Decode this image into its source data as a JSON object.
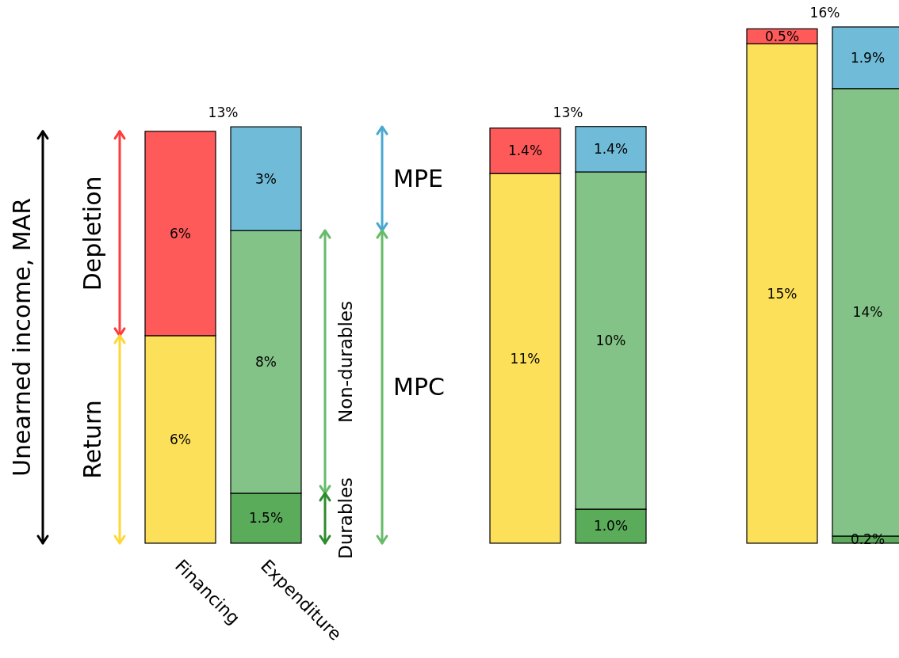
{
  "chart_data": [
    {
      "type": "bar",
      "stacked": true,
      "categories": [
        "Financing",
        "Expenditure"
      ],
      "tick_labels": "x",
      "series": [
        {
          "color": "#fde05a",
          "values": [
            6.4,
            null
          ],
          "value_labels": [
            "6%",
            null
          ]
        },
        {
          "color": "#ff5a5a",
          "values": [
            6.3,
            null
          ],
          "value_labels": [
            "6%",
            null
          ]
        },
        {
          "color": "#5aab5a",
          "values": [
            null,
            1.54
          ],
          "value_labels": [
            null,
            "1.5%"
          ]
        },
        {
          "color": "#84c387",
          "values": [
            null,
            8.1
          ],
          "value_labels": [
            null,
            "8%"
          ]
        },
        {
          "color": "#70bcd8",
          "values": [
            null,
            3.2
          ],
          "value_labels": [
            null,
            "3%"
          ]
        }
      ],
      "annotations": [
        "13%",
        "Unearned income, MAR",
        "Depletion",
        "Return",
        "Non-durables",
        "Durables",
        "MPE",
        "MPC"
      ]
    },
    {
      "type": "bar",
      "stacked": true,
      "categories": [
        null,
        null
      ],
      "tick_labels": "x",
      "series": [
        {
          "color": "#fde05a",
          "values": [
            11.4,
            null
          ],
          "value_labels": [
            "11%",
            null
          ]
        },
        {
          "color": "#ff5a5a",
          "values": [
            1.4,
            null
          ],
          "value_labels": [
            "1.4%",
            null
          ]
        },
        {
          "color": "#5aab5a",
          "values": [
            null,
            1.05
          ],
          "value_labels": [
            null,
            "1.0%"
          ]
        },
        {
          "color": "#84c387",
          "values": [
            null,
            10.4
          ],
          "value_labels": [
            null,
            "10%"
          ]
        },
        {
          "color": "#70bcd8",
          "values": [
            null,
            1.4
          ],
          "value_labels": [
            null,
            "1.4%"
          ]
        }
      ],
      "annotations": [
        "13%"
      ]
    },
    {
      "type": "bar",
      "stacked": true,
      "categories": [
        null,
        null
      ],
      "tick_labels": "x",
      "series": [
        {
          "color": "#fde05a",
          "values": [
            15.4,
            null
          ],
          "value_labels": [
            "15%",
            null
          ]
        },
        {
          "color": "#ff5a5a",
          "values": [
            0.46,
            null
          ],
          "value_labels": [
            "0.5%",
            null
          ]
        },
        {
          "color": "#5aab5a",
          "values": [
            null,
            0.22
          ],
          "value_labels": [
            null,
            "0.2%"
          ]
        },
        {
          "color": "#84c387",
          "values": [
            null,
            13.8
          ],
          "value_labels": [
            null,
            "14%"
          ]
        },
        {
          "color": "#70bcd8",
          "values": [
            null,
            1.9
          ],
          "value_labels": [
            null,
            "1.9%"
          ]
        }
      ],
      "annotations": [
        "16%"
      ]
    }
  ]
}
